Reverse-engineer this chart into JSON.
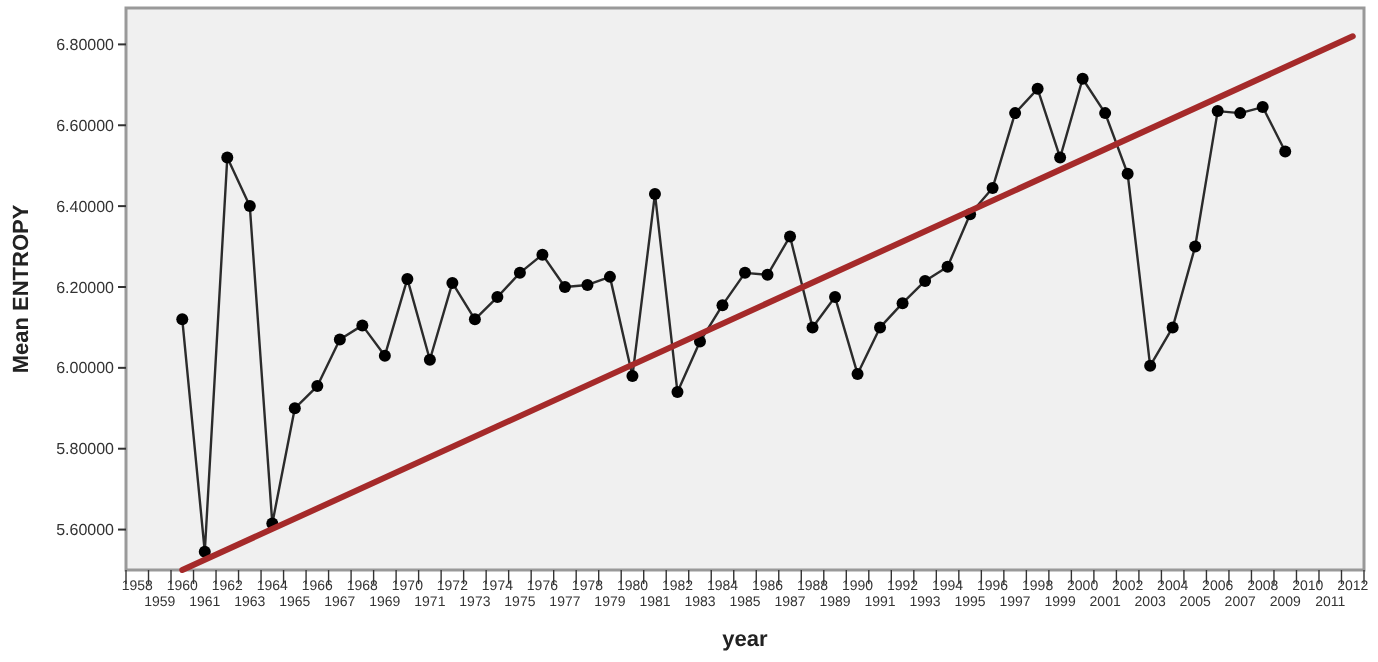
{
  "chart_data": {
    "type": "line",
    "xlabel": "year",
    "ylabel": "Mean ENTROPY",
    "categories": [
      "1958",
      "1959",
      "1960",
      "1961",
      "1962",
      "1963",
      "1964",
      "1965",
      "1966",
      "1967",
      "1968",
      "1969",
      "1970",
      "1971",
      "1972",
      "1973",
      "1974",
      "1975",
      "1976",
      "1977",
      "1978",
      "1979",
      "1980",
      "1981",
      "1982",
      "1983",
      "1984",
      "1985",
      "1986",
      "1987",
      "1988",
      "1989",
      "1990",
      "1991",
      "1992",
      "1993",
      "1994",
      "1995",
      "1996",
      "1997",
      "1998",
      "1999",
      "2000",
      "2001",
      "2002",
      "2003",
      "2004",
      "2005",
      "2006",
      "2007",
      "2008",
      "2009",
      "2010",
      "2011",
      "2012"
    ],
    "series": [
      {
        "color": "#2b2b2b",
        "marker": "circle",
        "values": [
          null,
          null,
          6.12,
          5.545,
          6.52,
          6.4,
          5.615,
          5.9,
          5.955,
          6.07,
          6.105,
          6.03,
          6.22,
          6.02,
          6.21,
          6.12,
          6.175,
          6.235,
          6.28,
          6.2,
          6.205,
          6.225,
          5.98,
          6.43,
          5.94,
          6.065,
          6.155,
          6.235,
          6.23,
          6.325,
          6.1,
          6.175,
          5.985,
          6.1,
          6.16,
          6.215,
          6.25,
          6.38,
          6.445,
          6.63,
          6.69,
          6.52,
          6.715,
          6.63,
          6.48,
          6.005,
          6.1,
          6.3,
          6.635,
          6.63,
          6.645,
          6.535,
          null,
          null,
          null
        ]
      },
      {
        "type": "line",
        "color": "#a52a2a",
        "marker": "none",
        "values": [
          null,
          null,
          5.5,
          null,
          null,
          null,
          null,
          null,
          null,
          null,
          null,
          null,
          null,
          null,
          null,
          null,
          null,
          null,
          null,
          null,
          null,
          null,
          null,
          null,
          null,
          null,
          null,
          null,
          null,
          null,
          null,
          null,
          null,
          null,
          null,
          null,
          null,
          null,
          null,
          null,
          null,
          null,
          null,
          null,
          null,
          null,
          null,
          null,
          null,
          null,
          null,
          null,
          null,
          null,
          6.82
        ]
      }
    ],
    "ylim": [
      5.5,
      6.89
    ],
    "yticks": [
      {
        "value": 5.6,
        "label": "5.60000"
      },
      {
        "value": 5.8,
        "label": "5.80000"
      },
      {
        "value": 6.0,
        "label": "6.00000"
      },
      {
        "value": 6.2,
        "label": "6.20000"
      },
      {
        "value": 6.4,
        "label": "6.40000"
      },
      {
        "value": 6.6,
        "label": "6.60000"
      },
      {
        "value": 6.8,
        "label": "6.80000"
      }
    ],
    "grid": false
  }
}
